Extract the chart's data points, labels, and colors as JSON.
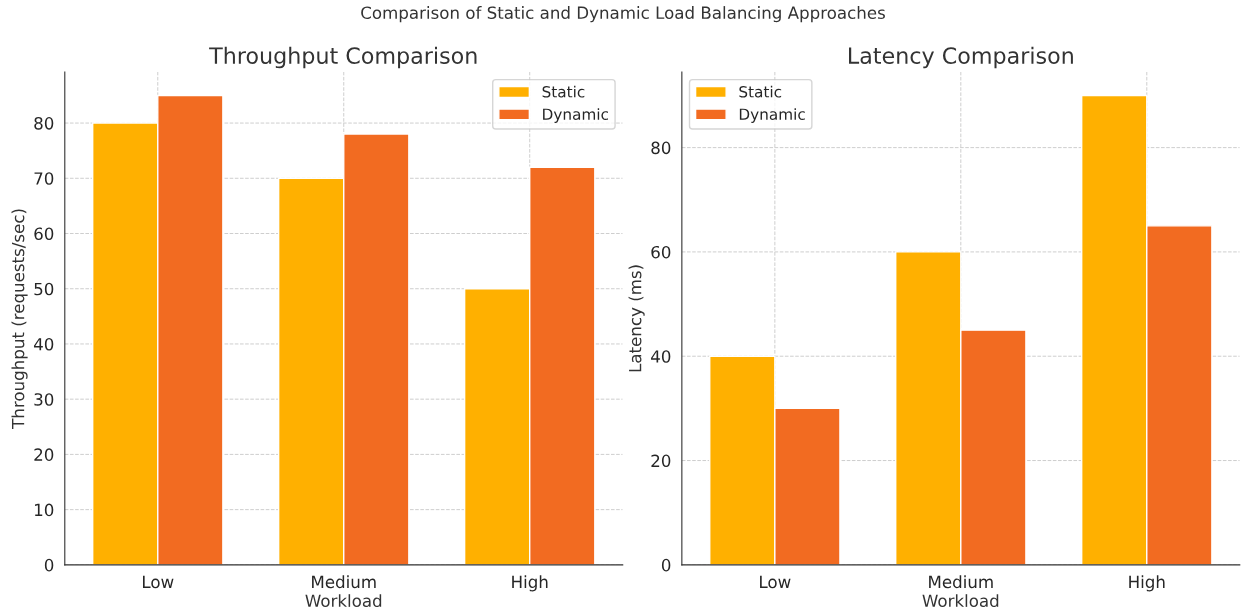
{
  "chart_data": [
    {
      "type": "bar",
      "title": "Throughput Comparison",
      "annotations": [
        "Comparison of Static and Dynamic Load Balancing Approaches"
      ],
      "xlabel": "Workload",
      "ylabel": "Throughput (requests/sec)",
      "categories": [
        "Low",
        "Medium",
        "High"
      ],
      "series": [
        {
          "name": "Static",
          "color": "#ffb000",
          "values": [
            80,
            70,
            50
          ]
        },
        {
          "name": "Dynamic",
          "color": "#f26b21",
          "values": [
            85,
            78,
            72
          ]
        }
      ],
      "ylim": [
        0,
        89.25
      ],
      "yticks": [
        0,
        10,
        20,
        30,
        40,
        50,
        60,
        70,
        80
      ],
      "grid": true,
      "legend": "top right"
    },
    {
      "type": "bar",
      "title": "Latency Comparison",
      "xlabel": "Workload",
      "ylabel": "Latency (ms)",
      "categories": [
        "Low",
        "Medium",
        "High"
      ],
      "series": [
        {
          "name": "Static",
          "color": "#ffb000",
          "values": [
            40,
            60,
            90
          ]
        },
        {
          "name": "Dynamic",
          "color": "#f26b21",
          "values": [
            30,
            45,
            65
          ]
        }
      ],
      "ylim": [
        0,
        94.5
      ],
      "yticks": [
        0,
        20,
        40,
        60,
        80
      ],
      "grid": true,
      "legend": "top left"
    }
  ]
}
